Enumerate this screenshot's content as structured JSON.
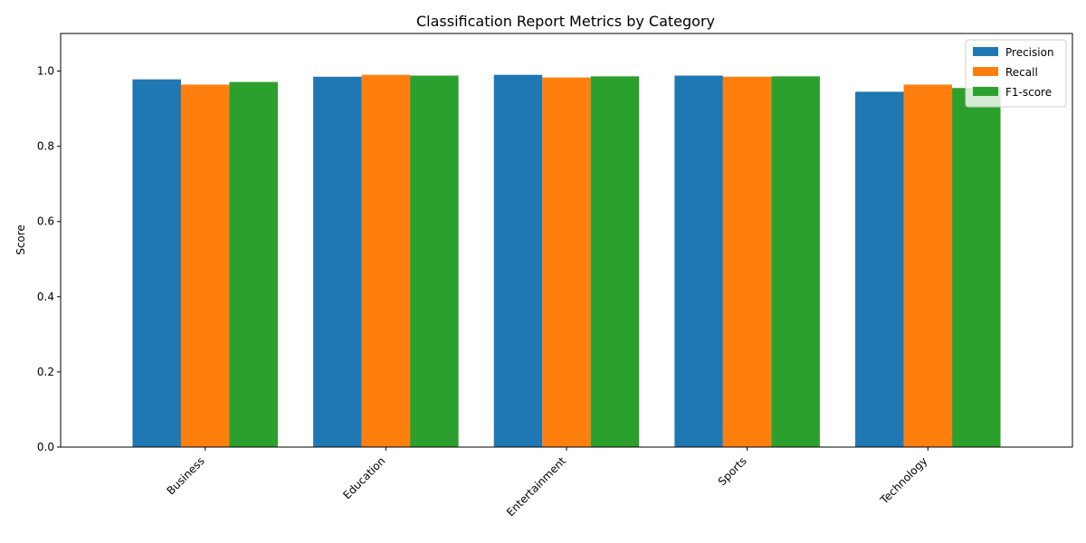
{
  "chart_data": {
    "type": "bar",
    "title": "Classification Report Metrics by Category",
    "xlabel": "",
    "ylabel": "Score",
    "ylim": [
      0,
      1.1
    ],
    "yticks": [
      "0.0",
      "0.2",
      "0.4",
      "0.6",
      "0.8",
      "1.0"
    ],
    "ytick_values": [
      0,
      0.2,
      0.4,
      0.6,
      0.8,
      1.0
    ],
    "categories": [
      "Business",
      "Education",
      "Entertainment",
      "Sports",
      "Technology"
    ],
    "series": [
      {
        "name": "Precision",
        "color": "#1f77b4",
        "values": [
          0.978,
          0.985,
          0.99,
          0.988,
          0.945
        ]
      },
      {
        "name": "Recall",
        "color": "#ff7f0e",
        "values": [
          0.964,
          0.99,
          0.983,
          0.985,
          0.964
        ]
      },
      {
        "name": "F1-score",
        "color": "#2ca02c",
        "values": [
          0.971,
          0.988,
          0.986,
          0.986,
          0.955
        ]
      }
    ],
    "legend_position": "top-right",
    "grid": false
  }
}
